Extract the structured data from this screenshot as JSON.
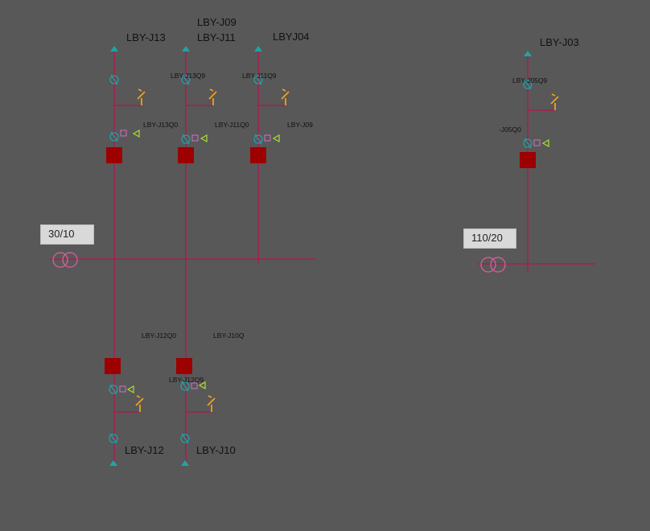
{
  "colors": {
    "background": "#585858",
    "line": "#b5144f",
    "breaker": "#9c0000",
    "switch": "#1fa3a8",
    "arrow": "#1fa3a8",
    "earth": "#f0a020",
    "indicator_square": "#d070c0",
    "indicator_triangle": "#a8e030",
    "transformer": "#e060a0",
    "text": "#111111"
  },
  "transformers": {
    "left": {
      "ratio": "30/10"
    },
    "right": {
      "ratio": "110/20"
    }
  },
  "feeders": {
    "j13": {
      "name": "LBY-J13",
      "disconnector": "LBY-J13Q9",
      "breaker": "LBY-J13Q0"
    },
    "j11": {
      "name": "LBY-J11",
      "name_extra": "LBY-J09",
      "disconnector": "LBY-J11Q9",
      "breaker": "LBY-J11Q0"
    },
    "j04": {
      "name": "LBYJ04",
      "breaker": "LBY-J09"
    },
    "j12": {
      "name": "LBY-J12",
      "breaker": "LBY-J12Q0"
    },
    "j10": {
      "name": "LBY-J10",
      "disconnector": "LBY-J12Q9",
      "breaker": "LBY-J10Q"
    },
    "j03": {
      "name": "LBY-J03",
      "disconnector": "LBY-J05Q9",
      "breaker": "-J05Q0"
    }
  }
}
